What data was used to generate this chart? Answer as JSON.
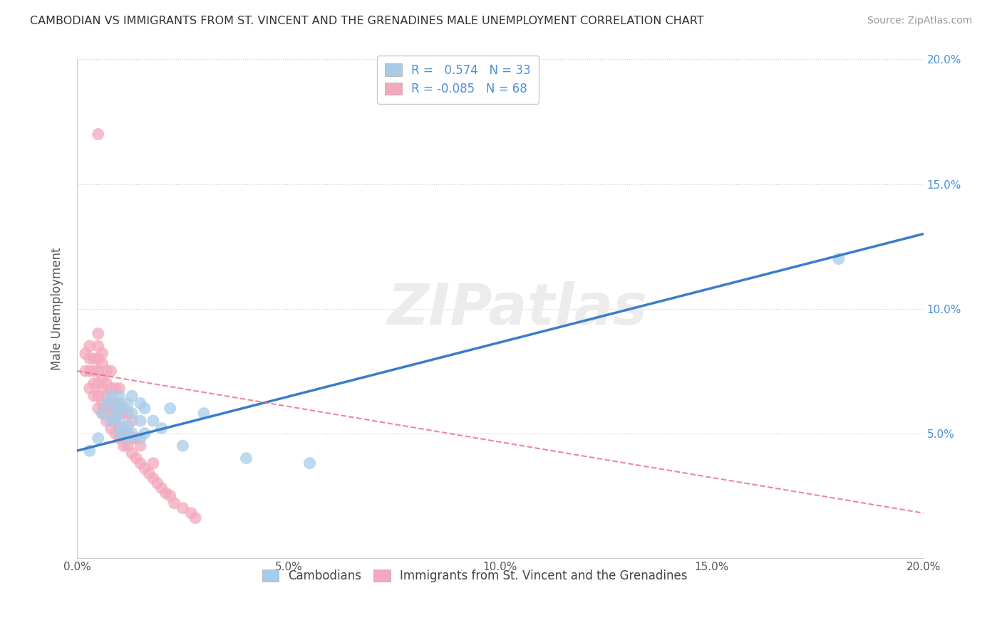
{
  "title": "CAMBODIAN VS IMMIGRANTS FROM ST. VINCENT AND THE GRENADINES MALE UNEMPLOYMENT CORRELATION CHART",
  "source": "Source: ZipAtlas.com",
  "ylabel": "Male Unemployment",
  "xlim": [
    0,
    0.2
  ],
  "ylim": [
    0,
    0.2
  ],
  "xticks": [
    0.0,
    0.05,
    0.1,
    0.15,
    0.2
  ],
  "yticks": [
    0.0,
    0.05,
    0.1,
    0.15,
    0.2
  ],
  "blue_R": 0.574,
  "blue_N": 33,
  "pink_R": -0.085,
  "pink_N": 68,
  "blue_color": "#A8CCE8",
  "pink_color": "#F4A8BC",
  "blue_line_color": "#3A7DC9",
  "pink_line_color": "#E8607A",
  "watermark": "ZIPatlas",
  "legend_label_blue": "Cambodians",
  "legend_label_pink": "Immigrants from St. Vincent and the Grenadines",
  "blue_scatter_x": [
    0.003,
    0.005,
    0.006,
    0.007,
    0.008,
    0.008,
    0.009,
    0.009,
    0.01,
    0.01,
    0.01,
    0.01,
    0.011,
    0.011,
    0.012,
    0.012,
    0.012,
    0.013,
    0.013,
    0.013,
    0.015,
    0.015,
    0.015,
    0.016,
    0.016,
    0.018,
    0.02,
    0.022,
    0.025,
    0.03,
    0.04,
    0.055,
    0.18
  ],
  "blue_scatter_y": [
    0.043,
    0.048,
    0.058,
    0.062,
    0.055,
    0.065,
    0.058,
    0.062,
    0.05,
    0.055,
    0.06,
    0.065,
    0.052,
    0.06,
    0.048,
    0.053,
    0.062,
    0.05,
    0.058,
    0.065,
    0.048,
    0.055,
    0.062,
    0.05,
    0.06,
    0.055,
    0.052,
    0.06,
    0.045,
    0.058,
    0.04,
    0.038,
    0.12
  ],
  "pink_scatter_x": [
    0.002,
    0.002,
    0.003,
    0.003,
    0.003,
    0.003,
    0.004,
    0.004,
    0.004,
    0.004,
    0.005,
    0.005,
    0.005,
    0.005,
    0.005,
    0.005,
    0.005,
    0.006,
    0.006,
    0.006,
    0.006,
    0.006,
    0.006,
    0.007,
    0.007,
    0.007,
    0.007,
    0.007,
    0.008,
    0.008,
    0.008,
    0.008,
    0.008,
    0.009,
    0.009,
    0.009,
    0.009,
    0.01,
    0.01,
    0.01,
    0.01,
    0.01,
    0.011,
    0.011,
    0.011,
    0.012,
    0.012,
    0.012,
    0.013,
    0.013,
    0.013,
    0.014,
    0.014,
    0.015,
    0.015,
    0.016,
    0.017,
    0.018,
    0.018,
    0.019,
    0.02,
    0.021,
    0.022,
    0.023,
    0.025,
    0.027,
    0.028,
    0.005
  ],
  "pink_scatter_y": [
    0.075,
    0.082,
    0.068,
    0.075,
    0.08,
    0.085,
    0.065,
    0.07,
    0.075,
    0.08,
    0.06,
    0.065,
    0.07,
    0.075,
    0.08,
    0.085,
    0.09,
    0.058,
    0.062,
    0.068,
    0.072,
    0.078,
    0.082,
    0.055,
    0.06,
    0.065,
    0.07,
    0.075,
    0.052,
    0.058,
    0.062,
    0.068,
    0.075,
    0.05,
    0.055,
    0.06,
    0.068,
    0.048,
    0.052,
    0.058,
    0.062,
    0.068,
    0.045,
    0.05,
    0.058,
    0.045,
    0.05,
    0.058,
    0.042,
    0.048,
    0.055,
    0.04,
    0.048,
    0.038,
    0.045,
    0.036,
    0.034,
    0.032,
    0.038,
    0.03,
    0.028,
    0.026,
    0.025,
    0.022,
    0.02,
    0.018,
    0.016,
    0.17
  ],
  "background_color": "#FFFFFF",
  "grid_color": "#E0E0E0",
  "grid_style": "dotted"
}
